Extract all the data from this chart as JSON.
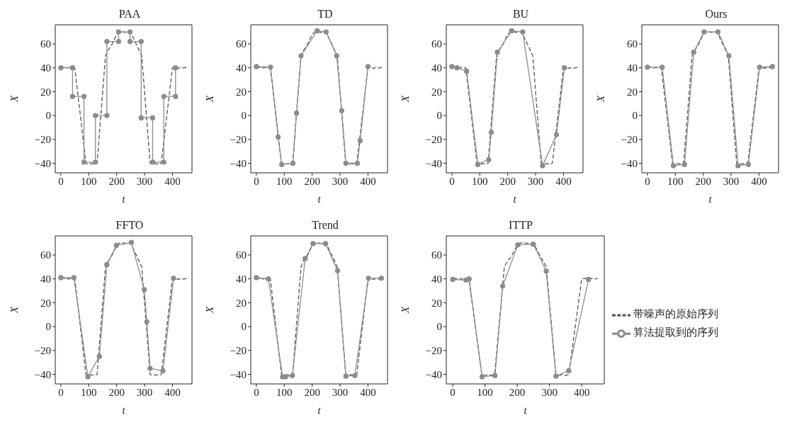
{
  "chart_data": [
    {
      "type": "line",
      "title": "PAA",
      "xlabel": "t",
      "ylabel": "X",
      "xlim": [
        -20,
        470
      ],
      "ylim": [
        -48,
        76
      ],
      "xticks": [
        0,
        100,
        200,
        300,
        400
      ],
      "yticks": [
        -40,
        -20,
        0,
        20,
        40,
        60
      ],
      "grid": false,
      "legend": false,
      "series": [
        {
          "color": "#555555",
          "line_style": "dashed",
          "marker": "none",
          "x": [
            0,
            10,
            20,
            30,
            40,
            50,
            90,
            100,
            110,
            120,
            130,
            160,
            170,
            180,
            190,
            200,
            210,
            220,
            230,
            240,
            250,
            260,
            270,
            280,
            290,
            320,
            330,
            340,
            350,
            360,
            400,
            410,
            420,
            430,
            440,
            450
          ],
          "values": [
            40,
            40.5,
            39.5,
            40.3,
            39.6,
            40,
            -40,
            -41,
            -40.2,
            -40.8,
            -40,
            50,
            55,
            58,
            63,
            68,
            70,
            70.5,
            69.6,
            70.4,
            70,
            65,
            60,
            55,
            50,
            -40,
            -40.8,
            -40.2,
            -41,
            -40,
            40,
            40.6,
            39.4,
            40.5,
            39.7,
            40.5
          ]
        },
        {
          "color": "#8c8c8c",
          "line_style": "solid",
          "marker": "circle",
          "x": [
            0,
            42,
            42,
            83,
            83,
            124,
            124,
            165,
            165,
            207,
            207,
            248,
            248,
            288,
            288,
            329,
            329,
            369,
            369,
            411,
            411
          ],
          "values": [
            40,
            40,
            16,
            16,
            -39,
            -39,
            0,
            0,
            62,
            62,
            70,
            70,
            62,
            62,
            -2,
            -2,
            -39,
            -39,
            16,
            16,
            40
          ]
        }
      ]
    },
    {
      "type": "line",
      "title": "TD",
      "xlabel": "t",
      "ylabel": "X",
      "xlim": [
        -20,
        470
      ],
      "ylim": [
        -48,
        76
      ],
      "xticks": [
        0,
        100,
        200,
        300,
        400
      ],
      "yticks": [
        -40,
        -20,
        0,
        20,
        40,
        60
      ],
      "grid": false,
      "legend": false,
      "series": [
        {
          "color": "#555555",
          "line_style": "dashed",
          "marker": "none",
          "x": [
            0,
            10,
            20,
            30,
            40,
            50,
            90,
            100,
            110,
            120,
            130,
            160,
            170,
            180,
            190,
            200,
            210,
            220,
            230,
            240,
            250,
            260,
            270,
            280,
            290,
            320,
            330,
            340,
            350,
            360,
            400,
            410,
            420,
            430,
            440,
            450
          ],
          "values": [
            40,
            40.5,
            39.5,
            40.3,
            39.6,
            40,
            -40,
            -41,
            -40.2,
            -40.8,
            -40,
            50,
            55,
            58,
            63,
            68,
            70,
            70.5,
            69.6,
            70.4,
            70,
            65,
            60,
            55,
            50,
            -40,
            -40.8,
            -40.2,
            -41,
            -40,
            40,
            40.6,
            39.4,
            40.5,
            39.7,
            40.5
          ]
        },
        {
          "color": "#8c8c8c",
          "line_style": "solid",
          "marker": "circle",
          "x": [
            0,
            51,
            78,
            91,
            131,
            144,
            160,
            218,
            250,
            288,
            306,
            321,
            362,
            372,
            400
          ],
          "values": [
            41,
            40.5,
            -18,
            -41,
            -40,
            2,
            50,
            71,
            70,
            50,
            4,
            -40,
            -40,
            -21,
            41
          ]
        }
      ]
    },
    {
      "type": "line",
      "title": "BU",
      "xlabel": "t",
      "ylabel": "X",
      "xlim": [
        -20,
        470
      ],
      "ylim": [
        -48,
        76
      ],
      "xticks": [
        0,
        100,
        200,
        300,
        400
      ],
      "yticks": [
        -40,
        -20,
        0,
        20,
        40,
        60
      ],
      "grid": false,
      "legend": false,
      "series": [
        {
          "color": "#555555",
          "line_style": "dashed",
          "marker": "none",
          "x": [
            0,
            10,
            20,
            30,
            40,
            50,
            90,
            100,
            110,
            120,
            130,
            160,
            170,
            180,
            190,
            200,
            210,
            220,
            230,
            240,
            250,
            260,
            270,
            280,
            290,
            320,
            330,
            340,
            350,
            360,
            400,
            410,
            420,
            430,
            440,
            450
          ],
          "values": [
            40,
            40.5,
            39.5,
            40.3,
            39.6,
            40,
            -40,
            -41,
            -40.2,
            -40.8,
            -40,
            50,
            55,
            58,
            63,
            68,
            70,
            70.5,
            69.6,
            70.4,
            70,
            65,
            60,
            55,
            50,
            -40,
            -40.8,
            -40.2,
            -41,
            -40,
            40,
            40.6,
            39.4,
            40.5,
            39.7,
            40.5
          ]
        },
        {
          "color": "#8c8c8c",
          "line_style": "solid",
          "marker": "circle",
          "x": [
            0,
            18,
            53,
            93,
            132,
            141,
            163,
            214,
            254,
            325,
            375,
            403
          ],
          "values": [
            41,
            40,
            37,
            -41,
            -37,
            -14,
            53,
            71,
            70,
            -42,
            -16,
            40
          ]
        }
      ]
    },
    {
      "type": "line",
      "title": "Ours",
      "xlabel": "t",
      "ylabel": "X",
      "xlim": [
        -20,
        470
      ],
      "ylim": [
        -48,
        76
      ],
      "xticks": [
        0,
        100,
        200,
        300,
        400
      ],
      "yticks": [
        -40,
        -20,
        0,
        20,
        40,
        60
      ],
      "grid": false,
      "legend": false,
      "series": [
        {
          "color": "#555555",
          "line_style": "dashed",
          "marker": "none",
          "x": [
            0,
            10,
            20,
            30,
            40,
            50,
            90,
            100,
            110,
            120,
            130,
            160,
            170,
            180,
            190,
            200,
            210,
            220,
            230,
            240,
            250,
            260,
            270,
            280,
            290,
            320,
            330,
            340,
            350,
            360,
            400,
            410,
            420,
            430,
            440,
            450
          ],
          "values": [
            40,
            40.5,
            39.5,
            40.3,
            39.6,
            40,
            -40,
            -41,
            -40.2,
            -40.8,
            -40,
            50,
            55,
            58,
            63,
            68,
            70,
            70.5,
            69.6,
            70.4,
            70,
            65,
            60,
            55,
            50,
            -40,
            -40.8,
            -40.2,
            -41,
            -40,
            40,
            40.6,
            39.4,
            40.5,
            39.7,
            40.5
          ]
        },
        {
          "color": "#8c8c8c",
          "line_style": "solid",
          "marker": "circle",
          "x": [
            0,
            53,
            93,
            133,
            166,
            203,
            253,
            292,
            325,
            362,
            402,
            448
          ],
          "values": [
            40.5,
            40.5,
            -42,
            -41,
            53,
            70,
            70,
            50,
            -42,
            -41,
            40.5,
            41
          ]
        }
      ]
    },
    {
      "type": "line",
      "title": "FFTO",
      "xlabel": "t",
      "ylabel": "X",
      "xlim": [
        -20,
        470
      ],
      "ylim": [
        -48,
        76
      ],
      "xticks": [
        0,
        100,
        200,
        300,
        400
      ],
      "yticks": [
        -40,
        -20,
        0,
        20,
        40,
        60
      ],
      "grid": false,
      "legend": false,
      "series": [
        {
          "color": "#555555",
          "line_style": "dashed",
          "marker": "none",
          "x": [
            0,
            10,
            20,
            30,
            40,
            50,
            90,
            100,
            110,
            120,
            130,
            160,
            170,
            180,
            190,
            200,
            210,
            220,
            230,
            240,
            250,
            260,
            270,
            280,
            290,
            320,
            330,
            340,
            350,
            360,
            400,
            410,
            420,
            430,
            440,
            450
          ],
          "values": [
            40,
            40.5,
            39.5,
            40.3,
            39.6,
            40,
            -40,
            -41,
            -40.2,
            -40.8,
            -40,
            50,
            55,
            58,
            63,
            68,
            70,
            70.5,
            69.6,
            70.4,
            70,
            65,
            60,
            55,
            50,
            -40,
            -40.8,
            -40.2,
            -41,
            -40,
            40,
            40.6,
            39.4,
            40.5,
            39.7,
            40.5
          ]
        },
        {
          "color": "#8c8c8c",
          "line_style": "solid",
          "marker": "circle",
          "x": [
            0,
            47,
            97,
            138,
            165,
            199,
            253,
            299,
            308,
            320,
            366,
            404
          ],
          "values": [
            41,
            41,
            -42,
            -25,
            52,
            68,
            70.5,
            31,
            4,
            -35,
            -37,
            40.5
          ]
        }
      ]
    },
    {
      "type": "line",
      "title": "Trend",
      "xlabel": "t",
      "ylabel": "X",
      "xlim": [
        -20,
        470
      ],
      "ylim": [
        -48,
        76
      ],
      "xticks": [
        0,
        100,
        200,
        300,
        400
      ],
      "yticks": [
        -40,
        -20,
        0,
        20,
        40,
        60
      ],
      "grid": false,
      "legend": false,
      "series": [
        {
          "color": "#555555",
          "line_style": "dashed",
          "marker": "none",
          "x": [
            0,
            10,
            20,
            30,
            40,
            50,
            90,
            100,
            110,
            120,
            130,
            160,
            170,
            180,
            190,
            200,
            210,
            220,
            230,
            240,
            250,
            260,
            270,
            280,
            290,
            320,
            330,
            340,
            350,
            360,
            400,
            410,
            420,
            430,
            440,
            450
          ],
          "values": [
            40,
            40.5,
            39.5,
            40.3,
            39.6,
            40,
            -40,
            -41,
            -40.2,
            -40.8,
            -40,
            50,
            55,
            58,
            63,
            68,
            70,
            70.5,
            69.6,
            70.4,
            70,
            65,
            60,
            55,
            50,
            -40,
            -40.8,
            -40.2,
            -41,
            -40,
            40,
            40.6,
            39.4,
            40.5,
            39.7,
            40.5
          ]
        },
        {
          "color": "#8c8c8c",
          "line_style": "solid",
          "marker": "circle",
          "x": [
            0,
            43,
            94,
            105,
            129,
            175,
            203,
            248,
            291,
            321,
            353,
            402,
            448
          ],
          "values": [
            41,
            40,
            -42,
            -42,
            -41,
            57,
            69.5,
            69.5,
            47,
            -41.5,
            -41,
            40.5,
            40.5
          ]
        }
      ]
    },
    {
      "type": "line",
      "title": "ITTP",
      "xlabel": "t",
      "ylabel": "X",
      "xlim": [
        -20,
        470
      ],
      "ylim": [
        -48,
        76
      ],
      "xticks": [
        0,
        100,
        200,
        300,
        400
      ],
      "yticks": [
        -40,
        -20,
        0,
        20,
        40,
        60
      ],
      "grid": false,
      "legend": "right",
      "series": [
        {
          "name": "带噪声的原始序列",
          "color": "#555555",
          "line_style": "dashed",
          "marker": "none",
          "x": [
            0,
            10,
            20,
            30,
            40,
            50,
            90,
            100,
            110,
            120,
            130,
            160,
            170,
            180,
            190,
            200,
            210,
            220,
            230,
            240,
            250,
            260,
            270,
            280,
            290,
            320,
            330,
            340,
            350,
            360,
            400,
            410,
            420,
            430,
            440,
            450
          ],
          "values": [
            40,
            40.5,
            39.5,
            40.3,
            39.6,
            40,
            -40,
            -41,
            -40.2,
            -40.8,
            -40,
            50,
            55,
            58,
            63,
            68,
            70,
            70.5,
            69.6,
            70.4,
            70,
            65,
            60,
            55,
            50,
            -40,
            -40.8,
            -40.2,
            -41,
            -40,
            40,
            40.6,
            39.4,
            40.5,
            39.7,
            40.5
          ]
        },
        {
          "name": "算法提取到的序列",
          "color": "#8c8c8c",
          "line_style": "solid",
          "marker": "circle",
          "x": [
            0,
            41,
            51,
            91,
            131,
            155,
            202,
            250,
            290,
            320,
            360,
            421
          ],
          "values": [
            39.5,
            39,
            40,
            -42,
            -41,
            34,
            68.5,
            69,
            46.5,
            -41.5,
            -37,
            39.5
          ]
        }
      ]
    }
  ]
}
